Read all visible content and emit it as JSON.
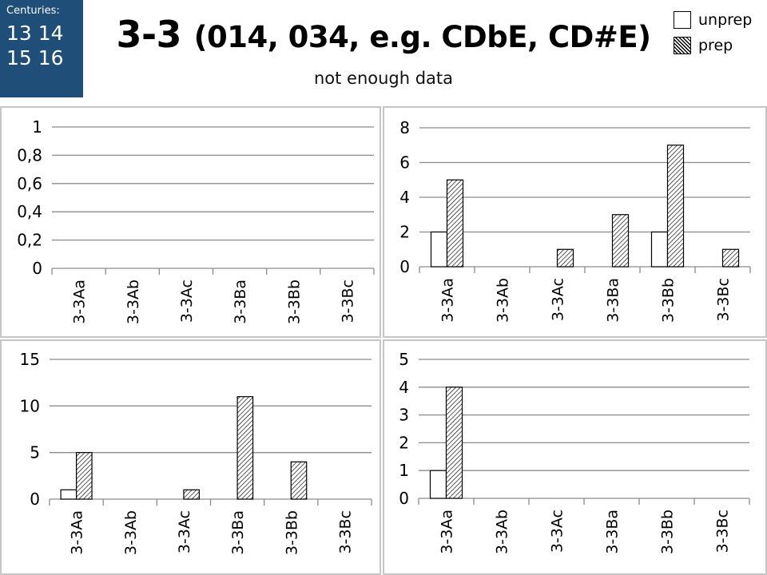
{
  "header": {
    "centuries_label": "Centuries:",
    "century_rows": [
      "13 14",
      "15 16"
    ],
    "title_main": "3-3",
    "title_paren": "(014, 034, e.g. CDbE, CD#E)",
    "subtitle": "not enough data"
  },
  "legend": {
    "items": [
      {
        "label": "unprep",
        "pattern": "none"
      },
      {
        "label": "prep",
        "pattern": "hatch"
      }
    ]
  },
  "colors": {
    "centuries_bg": "#1f4e79",
    "gridline": "#8c8c8c",
    "panel_border": "#c6c6c6",
    "bar_stroke": "#000000"
  },
  "chart_data": [
    {
      "type": "bar",
      "panel": "top-left",
      "categories": [
        "3-3Aa",
        "3-3Ab",
        "3-3Ac",
        "3-3Ba",
        "3-3Bb",
        "3-3Bc"
      ],
      "series": [
        {
          "name": "unprep",
          "values": [
            0,
            0,
            0,
            0,
            0,
            0
          ]
        },
        {
          "name": "prep",
          "values": [
            0,
            0,
            0,
            0,
            0,
            0
          ]
        }
      ],
      "ylim": [
        0,
        1
      ],
      "yticks": [
        0,
        0.2,
        0.4,
        0.6,
        0.8,
        1
      ],
      "ytick_labels": [
        "0",
        "0,2",
        "0,4",
        "0,6",
        "0,8",
        "1"
      ],
      "grid": true
    },
    {
      "type": "bar",
      "panel": "top-right",
      "categories": [
        "3-3Aa",
        "3-3Ab",
        "3-3Ac",
        "3-3Ba",
        "3-3Bb",
        "3-3Bc"
      ],
      "series": [
        {
          "name": "unprep",
          "values": [
            2,
            0,
            0,
            0,
            2,
            0
          ]
        },
        {
          "name": "prep",
          "values": [
            5,
            0,
            1,
            3,
            7,
            1
          ]
        }
      ],
      "ylim": [
        0,
        8
      ],
      "yticks": [
        0,
        2,
        4,
        6,
        8
      ],
      "ytick_labels": [
        "0",
        "2",
        "4",
        "6",
        "8"
      ],
      "grid": true
    },
    {
      "type": "bar",
      "panel": "bottom-left",
      "categories": [
        "3-3Aa",
        "3-3Ab",
        "3-3Ac",
        "3-3Ba",
        "3-3Bb",
        "3-3Bc"
      ],
      "series": [
        {
          "name": "unprep",
          "values": [
            1,
            0,
            0,
            0,
            0,
            0
          ]
        },
        {
          "name": "prep",
          "values": [
            5,
            0,
            1,
            11,
            4,
            0
          ]
        }
      ],
      "ylim": [
        0,
        15
      ],
      "yticks": [
        0,
        5,
        10,
        15
      ],
      "ytick_labels": [
        "0",
        "5",
        "10",
        "15"
      ],
      "grid": true
    },
    {
      "type": "bar",
      "panel": "bottom-right",
      "categories": [
        "3-3Aa",
        "3-3Ab",
        "3-3Ac",
        "3-3Ba",
        "3-3Bb",
        "3-3Bc"
      ],
      "series": [
        {
          "name": "unprep",
          "values": [
            1,
            0,
            0,
            0,
            0,
            0
          ]
        },
        {
          "name": "prep",
          "values": [
            4,
            0,
            0,
            0,
            0,
            0
          ]
        }
      ],
      "ylim": [
        0,
        5
      ],
      "yticks": [
        0,
        1,
        2,
        3,
        4,
        5
      ],
      "ytick_labels": [
        "0",
        "1",
        "2",
        "3",
        "4",
        "5"
      ],
      "grid": true
    }
  ]
}
